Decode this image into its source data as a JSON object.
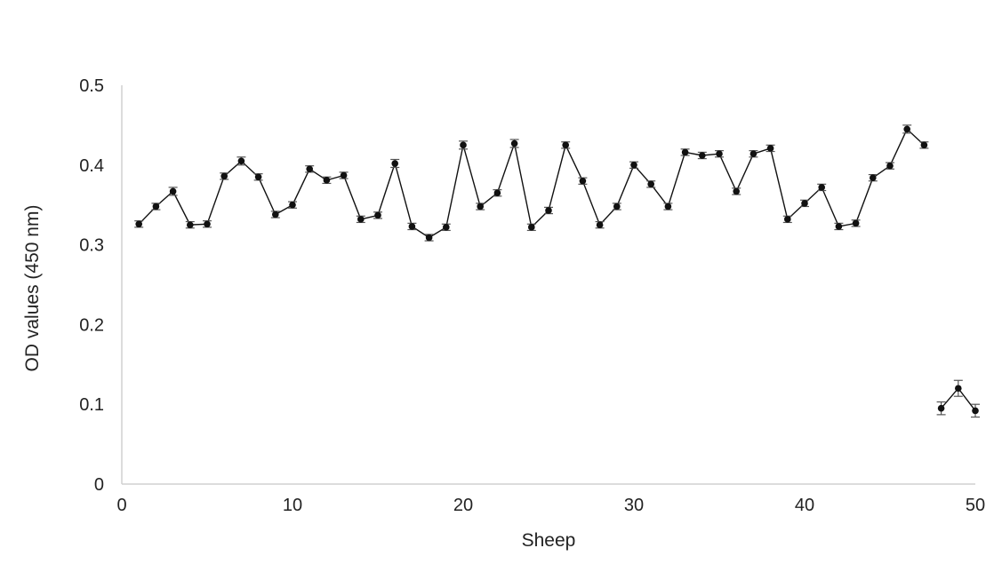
{
  "chart_data": {
    "type": "line",
    "title": "",
    "xlabel": "Sheep",
    "ylabel": "OD values (450 nm)",
    "xlim": [
      0,
      50
    ],
    "ylim": [
      0,
      0.5
    ],
    "x_ticks": [
      "0",
      "10",
      "20",
      "30",
      "40",
      "50"
    ],
    "y_ticks": [
      "0",
      "0.1",
      "0.2",
      "0.3",
      "0.4",
      "0.5"
    ],
    "grid": false,
    "legend": "none",
    "line_color": "#111111",
    "marker_color": "#111111",
    "errorbar_color": "#555555",
    "series": [
      {
        "x": [
          1,
          2,
          3,
          4,
          5,
          6,
          7,
          8,
          9,
          10,
          11,
          12,
          13,
          14,
          15,
          16,
          17,
          18,
          19,
          20,
          21,
          22,
          23,
          24,
          25,
          26,
          27,
          28,
          29,
          30,
          31,
          32,
          33,
          34,
          35,
          36,
          37,
          38,
          39,
          40,
          41,
          42,
          43,
          44,
          45,
          46,
          47
        ],
        "values": [
          0.326,
          0.348,
          0.367,
          0.325,
          0.326,
          0.386,
          0.405,
          0.385,
          0.338,
          0.35,
          0.395,
          0.381,
          0.387,
          0.332,
          0.337,
          0.402,
          0.323,
          0.309,
          0.322,
          0.425,
          0.348,
          0.365,
          0.427,
          0.322,
          0.343,
          0.425,
          0.38,
          0.325,
          0.348,
          0.4,
          0.376,
          0.348,
          0.416,
          0.412,
          0.414,
          0.367,
          0.414,
          0.421,
          0.332,
          0.352,
          0.372,
          0.323,
          0.327,
          0.384,
          0.399,
          0.445,
          0.425
        ],
        "errors": [
          0.004,
          0.004,
          0.005,
          0.004,
          0.004,
          0.004,
          0.005,
          0.004,
          0.004,
          0.004,
          0.004,
          0.004,
          0.004,
          0.004,
          0.004,
          0.005,
          0.004,
          0.004,
          0.004,
          0.005,
          0.004,
          0.004,
          0.005,
          0.004,
          0.004,
          0.004,
          0.004,
          0.004,
          0.004,
          0.004,
          0.004,
          0.004,
          0.004,
          0.004,
          0.004,
          0.004,
          0.004,
          0.004,
          0.004,
          0.004,
          0.004,
          0.004,
          0.004,
          0.004,
          0.004,
          0.005,
          0.004
        ]
      },
      {
        "x": [
          48,
          49,
          50
        ],
        "values": [
          0.095,
          0.12,
          0.092
        ],
        "errors": [
          0.008,
          0.01,
          0.008
        ]
      }
    ]
  }
}
